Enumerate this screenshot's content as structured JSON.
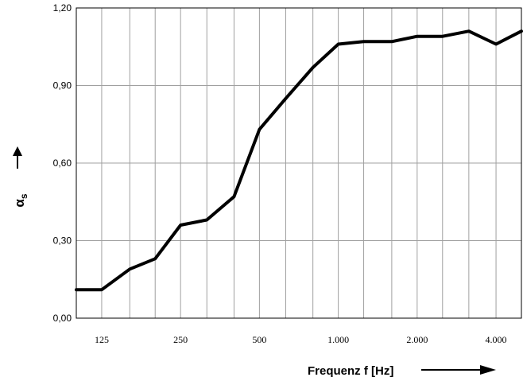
{
  "chart_data": {
    "type": "line",
    "title": "",
    "xlabel": "Frequenz f [Hz]",
    "ylabel": {
      "symbol": "α",
      "subscript": "s"
    },
    "x": [
      100,
      125,
      160,
      200,
      250,
      315,
      400,
      500,
      630,
      800,
      1000,
      1250,
      1600,
      2000,
      2500,
      3150,
      4000,
      5000
    ],
    "x_tick_labels": [
      {
        "x": 125,
        "label": "125"
      },
      {
        "x": 250,
        "label": "250"
      },
      {
        "x": 500,
        "label": "500"
      },
      {
        "x": 1000,
        "label": "1.000"
      },
      {
        "x": 2000,
        "label": "2.000"
      },
      {
        "x": 4000,
        "label": "4.000"
      }
    ],
    "series": [
      {
        "values": [
          0.11,
          0.11,
          0.19,
          0.23,
          0.36,
          0.38,
          0.47,
          0.73,
          0.85,
          0.97,
          1.06,
          1.07,
          1.07,
          1.09,
          1.09,
          1.11,
          1.06,
          1.11
        ]
      }
    ],
    "y_ticks": [
      {
        "value": 0.0,
        "label": "0,00"
      },
      {
        "value": 0.3,
        "label": "0,30"
      },
      {
        "value": 0.6,
        "label": "0,60"
      },
      {
        "value": 0.9,
        "label": "0,90"
      },
      {
        "value": 1.2,
        "label": "1,20"
      }
    ],
    "ylim": [
      0,
      1.2
    ],
    "x_scale": "log (third-octave bands)",
    "grid": true,
    "line_color": "#000000",
    "grid_color": "#a0a0a0"
  }
}
